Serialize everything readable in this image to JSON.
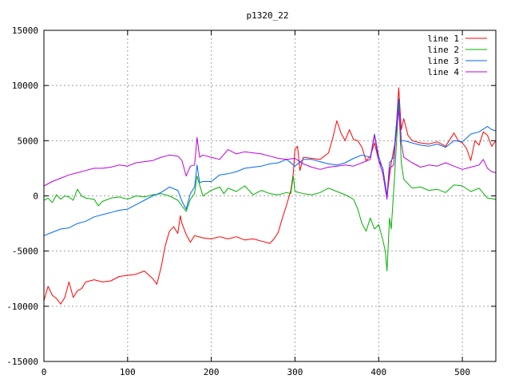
{
  "chart_data": {
    "type": "line",
    "title": "p1320_22",
    "xlabel": "",
    "ylabel": "",
    "xlim": [
      0,
      540
    ],
    "ylim": [
      -15000,
      15000
    ],
    "xticks": [
      0,
      100,
      200,
      300,
      400,
      500
    ],
    "yticks": [
      -15000,
      -10000,
      -5000,
      0,
      5000,
      10000,
      15000
    ],
    "grid": true,
    "legend_position": "top-right",
    "series": [
      {
        "name": "line 1",
        "color": "#ff0000",
        "points": [
          [
            0,
            -9500
          ],
          [
            5,
            -8200
          ],
          [
            10,
            -9000
          ],
          [
            15,
            -9300
          ],
          [
            20,
            -9800
          ],
          [
            25,
            -9200
          ],
          [
            30,
            -7800
          ],
          [
            35,
            -9200
          ],
          [
            40,
            -8600
          ],
          [
            45,
            -8400
          ],
          [
            50,
            -7800
          ],
          [
            60,
            -7600
          ],
          [
            70,
            -7800
          ],
          [
            80,
            -7700
          ],
          [
            90,
            -7300
          ],
          [
            100,
            -7200
          ],
          [
            110,
            -7100
          ],
          [
            120,
            -6800
          ],
          [
            130,
            -7500
          ],
          [
            135,
            -8000
          ],
          [
            140,
            -6500
          ],
          [
            145,
            -4500
          ],
          [
            150,
            -3200
          ],
          [
            155,
            -2800
          ],
          [
            160,
            -3400
          ],
          [
            163,
            -1800
          ],
          [
            165,
            -2500
          ],
          [
            170,
            -3500
          ],
          [
            175,
            -4200
          ],
          [
            180,
            -3600
          ],
          [
            190,
            -3800
          ],
          [
            200,
            -3900
          ],
          [
            210,
            -3700
          ],
          [
            220,
            -3900
          ],
          [
            230,
            -3700
          ],
          [
            240,
            -4000
          ],
          [
            250,
            -3900
          ],
          [
            260,
            -4100
          ],
          [
            270,
            -4300
          ],
          [
            275,
            -3900
          ],
          [
            280,
            -3300
          ],
          [
            285,
            -2000
          ],
          [
            290,
            -800
          ],
          [
            295,
            500
          ],
          [
            298,
            2000
          ],
          [
            300,
            4200
          ],
          [
            303,
            4500
          ],
          [
            306,
            2300
          ],
          [
            310,
            3500
          ],
          [
            320,
            3400
          ],
          [
            330,
            3300
          ],
          [
            340,
            3900
          ],
          [
            345,
            5200
          ],
          [
            350,
            6800
          ],
          [
            355,
            5700
          ],
          [
            360,
            5000
          ],
          [
            365,
            6000
          ],
          [
            370,
            5100
          ],
          [
            375,
            5000
          ],
          [
            380,
            4400
          ],
          [
            385,
            3200
          ],
          [
            390,
            3600
          ],
          [
            395,
            4800
          ],
          [
            400,
            3200
          ],
          [
            405,
            2500
          ],
          [
            410,
            0
          ],
          [
            415,
            3000
          ],
          [
            420,
            5000
          ],
          [
            424,
            9800
          ],
          [
            427,
            6000
          ],
          [
            430,
            7000
          ],
          [
            435,
            5500
          ],
          [
            440,
            5000
          ],
          [
            450,
            4800
          ],
          [
            460,
            4700
          ],
          [
            470,
            4900
          ],
          [
            480,
            4500
          ],
          [
            490,
            5700
          ],
          [
            495,
            5000
          ],
          [
            500,
            4800
          ],
          [
            505,
            4300
          ],
          [
            510,
            3200
          ],
          [
            515,
            5000
          ],
          [
            520,
            4600
          ],
          [
            525,
            5800
          ],
          [
            530,
            5500
          ],
          [
            535,
            4500
          ],
          [
            540,
            5000
          ]
        ]
      },
      {
        "name": "line 2",
        "color": "#00b000",
        "points": [
          [
            0,
            -400
          ],
          [
            5,
            -200
          ],
          [
            10,
            -600
          ],
          [
            15,
            100
          ],
          [
            20,
            -300
          ],
          [
            25,
            0
          ],
          [
            30,
            -100
          ],
          [
            35,
            -400
          ],
          [
            40,
            600
          ],
          [
            45,
            0
          ],
          [
            50,
            -200
          ],
          [
            60,
            -300
          ],
          [
            65,
            -900
          ],
          [
            70,
            -500
          ],
          [
            80,
            -200
          ],
          [
            90,
            -100
          ],
          [
            100,
            -300
          ],
          [
            110,
            0
          ],
          [
            120,
            -100
          ],
          [
            130,
            100
          ],
          [
            140,
            200
          ],
          [
            150,
            0
          ],
          [
            160,
            -400
          ],
          [
            165,
            -900
          ],
          [
            170,
            -1400
          ],
          [
            175,
            -300
          ],
          [
            180,
            200
          ],
          [
            183,
            1800
          ],
          [
            186,
            1000
          ],
          [
            190,
            0
          ],
          [
            200,
            500
          ],
          [
            210,
            800
          ],
          [
            215,
            200
          ],
          [
            220,
            700
          ],
          [
            230,
            400
          ],
          [
            240,
            900
          ],
          [
            250,
            100
          ],
          [
            260,
            500
          ],
          [
            270,
            200
          ],
          [
            280,
            100
          ],
          [
            290,
            300
          ],
          [
            295,
            200
          ],
          [
            298,
            1800
          ],
          [
            300,
            400
          ],
          [
            310,
            200
          ],
          [
            320,
            100
          ],
          [
            330,
            300
          ],
          [
            340,
            700
          ],
          [
            350,
            400
          ],
          [
            360,
            100
          ],
          [
            370,
            -300
          ],
          [
            375,
            -1200
          ],
          [
            380,
            -2500
          ],
          [
            385,
            -3200
          ],
          [
            390,
            -2000
          ],
          [
            395,
            -3000
          ],
          [
            400,
            -2600
          ],
          [
            405,
            -4000
          ],
          [
            408,
            -5000
          ],
          [
            410,
            -6800
          ],
          [
            413,
            -2000
          ],
          [
            415,
            -3000
          ],
          [
            418,
            500
          ],
          [
            420,
            3000
          ],
          [
            424,
            8500
          ],
          [
            427,
            3000
          ],
          [
            430,
            1500
          ],
          [
            440,
            700
          ],
          [
            450,
            800
          ],
          [
            460,
            500
          ],
          [
            470,
            600
          ],
          [
            480,
            300
          ],
          [
            490,
            1000
          ],
          [
            500,
            900
          ],
          [
            510,
            400
          ],
          [
            520,
            700
          ],
          [
            530,
            -200
          ],
          [
            540,
            -300
          ]
        ]
      },
      {
        "name": "line 3",
        "color": "#0066ff",
        "points": [
          [
            0,
            -3600
          ],
          [
            10,
            -3300
          ],
          [
            20,
            -3000
          ],
          [
            30,
            -2900
          ],
          [
            40,
            -2500
          ],
          [
            50,
            -2300
          ],
          [
            60,
            -1900
          ],
          [
            70,
            -1700
          ],
          [
            80,
            -1500
          ],
          [
            90,
            -1300
          ],
          [
            100,
            -1200
          ],
          [
            110,
            -800
          ],
          [
            120,
            -400
          ],
          [
            130,
            0
          ],
          [
            140,
            300
          ],
          [
            150,
            800
          ],
          [
            160,
            500
          ],
          [
            165,
            -500
          ],
          [
            170,
            -1200
          ],
          [
            175,
            200
          ],
          [
            180,
            800
          ],
          [
            183,
            2800
          ],
          [
            186,
            1200
          ],
          [
            190,
            1300
          ],
          [
            200,
            1300
          ],
          [
            210,
            1900
          ],
          [
            220,
            2000
          ],
          [
            230,
            2200
          ],
          [
            240,
            2500
          ],
          [
            250,
            2600
          ],
          [
            260,
            2700
          ],
          [
            270,
            2900
          ],
          [
            280,
            3000
          ],
          [
            290,
            3300
          ],
          [
            300,
            2700
          ],
          [
            310,
            3300
          ],
          [
            320,
            3300
          ],
          [
            330,
            3100
          ],
          [
            340,
            2900
          ],
          [
            350,
            2800
          ],
          [
            360,
            3000
          ],
          [
            370,
            3400
          ],
          [
            380,
            3700
          ],
          [
            390,
            3500
          ],
          [
            395,
            5600
          ],
          [
            400,
            3600
          ],
          [
            405,
            2400
          ],
          [
            410,
            0
          ],
          [
            413,
            3000
          ],
          [
            418,
            3500
          ],
          [
            420,
            5500
          ],
          [
            424,
            8800
          ],
          [
            427,
            5000
          ],
          [
            430,
            5000
          ],
          [
            440,
            4800
          ],
          [
            450,
            4600
          ],
          [
            460,
            4500
          ],
          [
            470,
            4700
          ],
          [
            480,
            4400
          ],
          [
            490,
            5000
          ],
          [
            500,
            4900
          ],
          [
            510,
            5600
          ],
          [
            520,
            5800
          ],
          [
            530,
            6300
          ],
          [
            535,
            6000
          ],
          [
            540,
            5900
          ]
        ]
      },
      {
        "name": "line 4",
        "color": "#bb00dd",
        "points": [
          [
            0,
            900
          ],
          [
            10,
            1300
          ],
          [
            20,
            1600
          ],
          [
            30,
            1900
          ],
          [
            40,
            2100
          ],
          [
            50,
            2300
          ],
          [
            60,
            2500
          ],
          [
            70,
            2500
          ],
          [
            80,
            2600
          ],
          [
            90,
            2800
          ],
          [
            100,
            2700
          ],
          [
            110,
            3000
          ],
          [
            120,
            3100
          ],
          [
            130,
            3200
          ],
          [
            140,
            3500
          ],
          [
            150,
            3700
          ],
          [
            160,
            3600
          ],
          [
            165,
            3200
          ],
          [
            170,
            1800
          ],
          [
            175,
            2700
          ],
          [
            180,
            2800
          ],
          [
            183,
            5300
          ],
          [
            186,
            3500
          ],
          [
            190,
            3700
          ],
          [
            200,
            3500
          ],
          [
            210,
            3300
          ],
          [
            220,
            4200
          ],
          [
            230,
            3800
          ],
          [
            240,
            4000
          ],
          [
            250,
            3900
          ],
          [
            260,
            3800
          ],
          [
            270,
            3600
          ],
          [
            280,
            3400
          ],
          [
            290,
            3300
          ],
          [
            300,
            3400
          ],
          [
            310,
            2900
          ],
          [
            320,
            2600
          ],
          [
            330,
            2400
          ],
          [
            340,
            2600
          ],
          [
            350,
            2700
          ],
          [
            360,
            2800
          ],
          [
            370,
            2700
          ],
          [
            380,
            3000
          ],
          [
            390,
            3300
          ],
          [
            395,
            5500
          ],
          [
            400,
            3200
          ],
          [
            405,
            2000
          ],
          [
            410,
            -300
          ],
          [
            413,
            2500
          ],
          [
            418,
            2800
          ],
          [
            420,
            5000
          ],
          [
            424,
            7800
          ],
          [
            427,
            4800
          ],
          [
            430,
            3500
          ],
          [
            440,
            3000
          ],
          [
            450,
            2600
          ],
          [
            460,
            2800
          ],
          [
            470,
            2700
          ],
          [
            480,
            3000
          ],
          [
            490,
            2700
          ],
          [
            500,
            2400
          ],
          [
            510,
            2600
          ],
          [
            520,
            2800
          ],
          [
            525,
            3300
          ],
          [
            530,
            2500
          ],
          [
            535,
            2200
          ],
          [
            540,
            2100
          ]
        ]
      }
    ]
  }
}
